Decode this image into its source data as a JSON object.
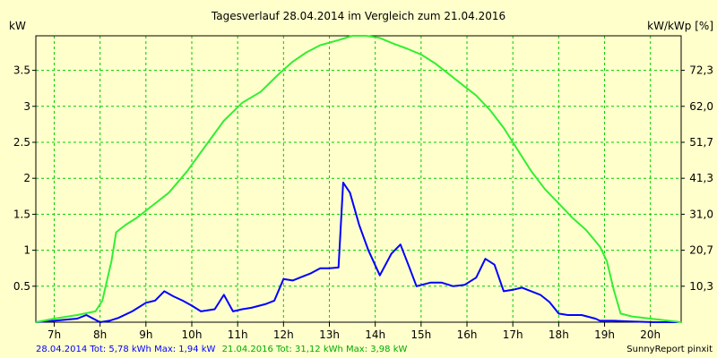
{
  "chart_data": {
    "type": "line",
    "title": "Tagesverlauf 28.04.2014 im Vergleich zum 21.04.2016",
    "ylabel_left": "kW",
    "ylabel_right": "kW/kWp [%]",
    "x_ticks": [
      "7h",
      "8h",
      "9h",
      "10h",
      "11h",
      "12h",
      "13h",
      "14h",
      "15h",
      "16h",
      "17h",
      "18h",
      "19h",
      "20h"
    ],
    "y_ticks_left": [
      "0.5",
      "1",
      "1.5",
      "2",
      "2.5",
      "3",
      "3.5"
    ],
    "y_ticks_right": [
      "10,3",
      "20,7",
      "31,0",
      "41,3",
      "51,7",
      "62,0",
      "72,3"
    ],
    "x_range_hours": [
      6.6,
      20.67
    ],
    "ylim": [
      0,
      3.98
    ],
    "grid": true,
    "series": [
      {
        "color": "#0000ff",
        "x": [
          6.6,
          7.0,
          7.5,
          7.7,
          7.85,
          8.0,
          8.2,
          8.4,
          8.7,
          9.0,
          9.2,
          9.4,
          9.6,
          9.8,
          10.0,
          10.2,
          10.5,
          10.7,
          10.9,
          11.1,
          11.3,
          11.6,
          11.8,
          12.0,
          12.2,
          12.4,
          12.6,
          12.8,
          13.0,
          13.2,
          13.3,
          13.45,
          13.65,
          13.85,
          14.1,
          14.35,
          14.55,
          14.75,
          14.9,
          15.2,
          15.45,
          15.7,
          15.95,
          16.2,
          16.4,
          16.6,
          16.8,
          17.0,
          17.2,
          17.4,
          17.6,
          17.8,
          18.0,
          18.2,
          18.5,
          18.8,
          18.9,
          19.2,
          19.6,
          20.1,
          20.6
        ],
        "values": [
          0.0,
          0.02,
          0.05,
          0.1,
          0.05,
          0.0,
          0.02,
          0.06,
          0.15,
          0.27,
          0.3,
          0.43,
          0.36,
          0.3,
          0.23,
          0.15,
          0.18,
          0.38,
          0.15,
          0.18,
          0.2,
          0.25,
          0.3,
          0.6,
          0.58,
          0.63,
          0.68,
          0.75,
          0.75,
          0.76,
          1.94,
          1.8,
          1.35,
          1.0,
          0.65,
          0.95,
          1.08,
          0.75,
          0.5,
          0.55,
          0.55,
          0.5,
          0.52,
          0.62,
          0.88,
          0.8,
          0.43,
          0.45,
          0.48,
          0.43,
          0.38,
          0.28,
          0.12,
          0.1,
          0.1,
          0.05,
          0.02,
          0.02,
          0.01,
          0.0,
          0.0
        ]
      },
      {
        "color": "#33ee33",
        "x": [
          6.6,
          7.0,
          7.5,
          7.9,
          8.05,
          8.25,
          8.35,
          8.55,
          8.8,
          9.1,
          9.5,
          9.9,
          10.3,
          10.7,
          11.1,
          11.5,
          11.9,
          12.2,
          12.5,
          12.8,
          13.2,
          13.5,
          13.8,
          14.1,
          14.4,
          14.7,
          15.0,
          15.3,
          15.6,
          15.9,
          16.2,
          16.5,
          16.8,
          17.1,
          17.4,
          17.7,
          18.0,
          18.3,
          18.6,
          18.9,
          19.05,
          19.2,
          19.35,
          19.6,
          20.0,
          20.4,
          20.67
        ],
        "values": [
          0.0,
          0.05,
          0.1,
          0.15,
          0.3,
          0.85,
          1.25,
          1.35,
          1.45,
          1.6,
          1.8,
          2.1,
          2.45,
          2.8,
          3.05,
          3.2,
          3.45,
          3.62,
          3.75,
          3.85,
          3.92,
          3.98,
          3.98,
          3.95,
          3.87,
          3.8,
          3.72,
          3.6,
          3.45,
          3.3,
          3.15,
          2.95,
          2.7,
          2.4,
          2.1,
          1.85,
          1.65,
          1.45,
          1.28,
          1.05,
          0.85,
          0.45,
          0.12,
          0.08,
          0.05,
          0.02,
          0.0
        ]
      }
    ]
  },
  "footer": {
    "blue_text": "28.04.2014 Tot: 5,78 kWh Max: 1,94 kW",
    "green_text": "21.04.2016 Tot: 31,12 kWh Max: 3,98 kW",
    "credit": "SunnyReport pinxit"
  },
  "colors": {
    "background": "#ffffcc",
    "grid": "#00cc00",
    "blue": "#0000ff",
    "green": "#33ee33",
    "footer_green": "#00aa00"
  }
}
